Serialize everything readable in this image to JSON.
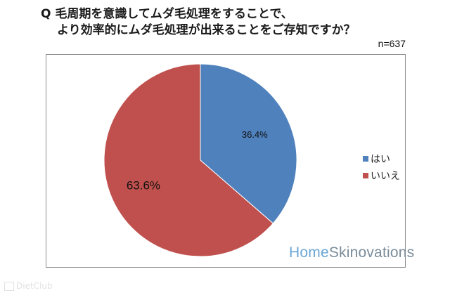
{
  "title": {
    "line1": "Q 毛周期を意識してムダ毛処理をすることで、",
    "line2": "より効率的にムダ毛処理が出来ることをご存知ですか？"
  },
  "sample_size": "n=637",
  "logo": {
    "part1": "Home",
    "part2": "Skinovations"
  },
  "watermark": "DietClub",
  "colors": {
    "yes": "#4f81bd",
    "no": "#c0504d",
    "frame": "#8c8c8c"
  },
  "chart_data": {
    "type": "pie",
    "title": "",
    "slices": [
      {
        "label": "はい",
        "value": 36.4,
        "display": "36.4%",
        "color": "#4f81bd"
      },
      {
        "label": "いいえ",
        "value": 63.6,
        "display": "63.6%",
        "color": "#c0504d"
      }
    ],
    "start_angle": "12 o'clock",
    "direction": "clockwise",
    "legend": {
      "position": "right",
      "entries": [
        "はい",
        "いいえ"
      ]
    }
  }
}
